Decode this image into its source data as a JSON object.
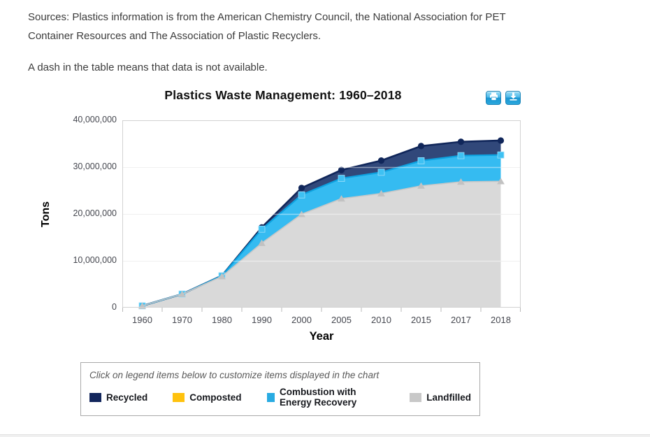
{
  "header": {
    "sources_line": "Sources: Plastics information is from the American Chemistry Council, the National Association for PET Container Resources and The Association of Plastic Recyclers.",
    "dash_note": "A dash in the table means that data is not available."
  },
  "toolbar": {
    "icons": [
      "printer-icon",
      "download-icon"
    ]
  },
  "chart_data": {
    "type": "area",
    "stacked": true,
    "title": "Plastics Waste Management: 1960–2018",
    "xlabel": "Year",
    "ylabel": "Tons",
    "ylim": [
      0,
      40000000
    ],
    "ytick_step": 10000000,
    "ytick_labels": [
      "0",
      "10,000,000",
      "20,000,000",
      "30,000,000",
      "40,000,000"
    ],
    "grid": "horizontal",
    "categories": [
      "1960",
      "1970",
      "1980",
      "1990",
      "2000",
      "2005",
      "2010",
      "2015",
      "2017",
      "2018"
    ],
    "stack_bottom_to_top": [
      "Landfilled",
      "Combustion with Energy Recovery",
      "Composted",
      "Recycled"
    ],
    "series": [
      {
        "name": "Recycled",
        "marker": "circle",
        "fill": "#31487a",
        "line": "#10265a",
        "marker_fill": "#10265a",
        "values": [
          null,
          null,
          20000,
          370000,
          1480000,
          1780000,
          2500000,
          3140000,
          2960000,
          3090000
        ]
      },
      {
        "name": "Composted",
        "marker": "none",
        "fill": "#ffc20e",
        "line": "#ffc20e",
        "marker_fill": "#ffc20e",
        "values": [
          null,
          null,
          null,
          null,
          null,
          null,
          null,
          null,
          null,
          null
        ]
      },
      {
        "name": "Combustion with Energy Recovery",
        "marker": "square",
        "fill": "#35bbf1",
        "line": "#0da2e0",
        "marker_fill": "#3ec1f3",
        "values": [
          0,
          0,
          140000,
          2980000,
          4120000,
          4330000,
          4530000,
          5350000,
          5590000,
          5620000
        ]
      },
      {
        "name": "Landfilled",
        "marker": "triangle",
        "fill": "#d9d9d9",
        "line": "#c7c7c7",
        "marker_fill": "#c2c2c2",
        "values": [
          390000,
          2900000,
          6670000,
          13780000,
          19950000,
          23270000,
          24370000,
          26010000,
          26860000,
          26970000
        ]
      }
    ]
  },
  "legend": {
    "hint": "Click on legend items below to customize items displayed in the chart",
    "items": [
      {
        "label": "Recycled",
        "color": "#12265c"
      },
      {
        "label": "Composted",
        "color": "#ffc20e"
      },
      {
        "label": "Combustion with Energy Recovery",
        "color": "#29abe2"
      },
      {
        "label": "Landfilled",
        "color": "#c8c8c8"
      }
    ]
  }
}
